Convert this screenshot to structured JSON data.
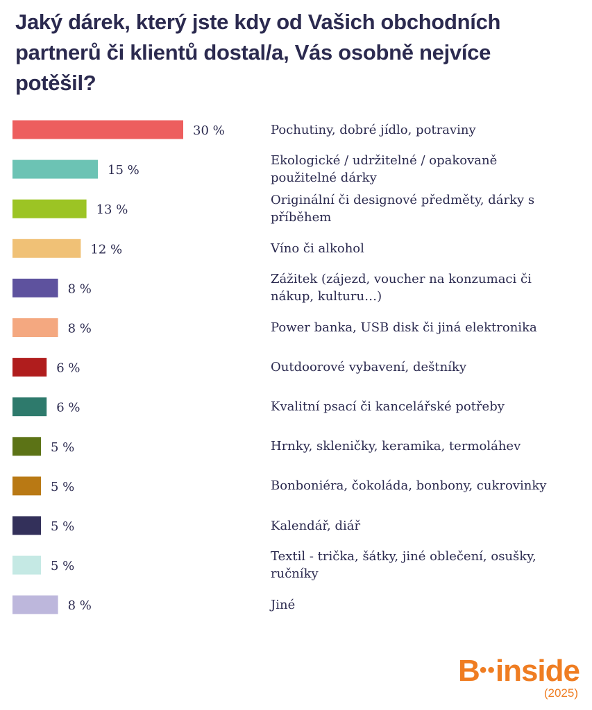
{
  "title": "Jaký dárek, který jste kdy od Vašich obchodních partnerů či klientů dostal/a, Vás osobně nejvíce potěšil?",
  "brand": {
    "logo_b": "B",
    "logo_dots": "••",
    "logo_rest": "inside",
    "year": "(2025)"
  },
  "chart_data": {
    "type": "bar",
    "orientation": "horizontal",
    "categories": [
      "Pochutiny, dobré jídlo, potraviny",
      "Ekologické / udržitelné / opakovaně použitelné dárky",
      "Originální či designové předměty, dárky s příběhem",
      "Víno či alkohol",
      "Zážitek (zájezd, voucher na konzumaci či nákup, kulturu…)",
      "Power banka, USB disk či jiná elektronika",
      "Outdoorové vybavení, deštníky",
      "Kvalitní psací či kancelářské potřeby",
      "Hrnky, skleničky, keramika, termoláhev",
      "Bonboniéra, čokoláda, bonbony, cukrovinky",
      "Kalendář, diář",
      "Textil - trička, šátky, jiné oblečení, osušky, ručníky",
      "Jiné"
    ],
    "values": [
      30,
      15,
      13,
      12,
      8,
      8,
      6,
      6,
      5,
      5,
      5,
      5,
      8
    ],
    "value_labels": [
      "30 %",
      "15 %",
      "13 %",
      "12 %",
      "8 %",
      "8 %",
      "6 %",
      "6 %",
      "5 %",
      "5 %",
      "5 %",
      "5 %",
      "8 %"
    ],
    "colors": [
      "#ed5e5e",
      "#6cc3b4",
      "#9cc424",
      "#f0c176",
      "#5e529e",
      "#f4a880",
      "#b01d1d",
      "#2e7a6c",
      "#5c7316",
      "#b97914",
      "#33305a",
      "#c5e9e4",
      "#bdb7dc"
    ],
    "unit": "%",
    "xlim": [
      0,
      30
    ],
    "grid": false,
    "legend": "none"
  }
}
